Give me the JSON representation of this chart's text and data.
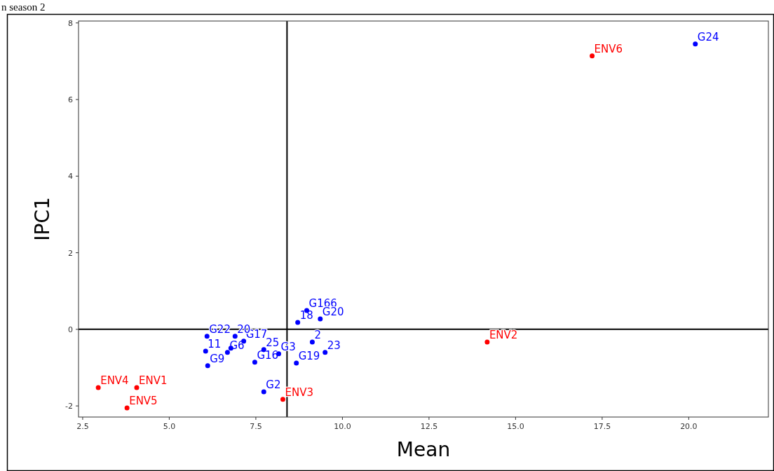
{
  "chart_data": {
    "type": "scatter",
    "xlabel": "Mean",
    "ylabel": "IPC1",
    "xlim": [
      2.38,
      22.3
    ],
    "ylim": [
      -2.29,
      8.05
    ],
    "xticks": [
      {
        "value": 2.5,
        "label": "2.5"
      },
      {
        "value": 5,
        "label": "5.0"
      },
      {
        "value": 7.5,
        "label": "7.5"
      },
      {
        "value": 10,
        "label": "10.0"
      },
      {
        "value": 12.5,
        "label": "12.5"
      },
      {
        "value": 15,
        "label": "15.0"
      },
      {
        "value": 17.5,
        "label": "17.5"
      },
      {
        "value": 20,
        "label": "20.0"
      }
    ],
    "yticks": [
      -2,
      0,
      2,
      4,
      6,
      8
    ],
    "grid": false,
    "marker": "circle",
    "series": [
      {
        "color": "#0000ff",
        "x": [
          20.19,
          8.97,
          8.71,
          9.36,
          9.13,
          9.5,
          8.67,
          8.16,
          7.73,
          7.47,
          7.15,
          6.68,
          6.78,
          6.9,
          6.09,
          6.05,
          6.11,
          7.73
        ],
        "values": [
          7.45,
          0.49,
          0.18,
          0.27,
          -0.33,
          -0.6,
          -0.88,
          -0.64,
          -0.53,
          -0.86,
          -0.31,
          -0.6,
          -0.49,
          -0.18,
          -0.18,
          -0.57,
          -0.95,
          -1.63
        ]
      },
      {
        "color": "#ff0000",
        "x": [
          17.21,
          14.18,
          8.28,
          2.95,
          4.06,
          3.78
        ],
        "values": [
          7.14,
          -0.33,
          -1.83,
          -1.52,
          -1.52,
          -2.05
        ]
      }
    ],
    "ref_lines": [
      {
        "axis": "x",
        "value": 8.4,
        "color": "#000000"
      },
      {
        "axis": "y",
        "value": 0,
        "color": "#000000"
      }
    ],
    "annotations": [
      "n season 2",
      {
        "text": "G24",
        "x": 20.19,
        "y": 7.45
      },
      {
        "text": "G166",
        "x": 8.97,
        "y": 0.49
      },
      {
        "text": "18",
        "x": 8.71,
        "y": 0.18
      },
      {
        "text": "G20",
        "x": 9.36,
        "y": 0.27
      },
      {
        "text": "2",
        "x": 9.13,
        "y": -0.33
      },
      {
        "text": "23",
        "x": 9.5,
        "y": -0.6
      },
      {
        "text": "G19",
        "x": 8.67,
        "y": -0.88
      },
      {
        "text": "G3",
        "x": 8.16,
        "y": -0.64
      },
      {
        "text": "25",
        "x": 7.73,
        "y": -0.53
      },
      {
        "text": "G16",
        "x": 7.47,
        "y": -0.86
      },
      {
        "text": "G17",
        "x": 7.15,
        "y": -0.31
      },
      {
        "text": "G6",
        "x": 6.68,
        "y": -0.6
      },
      {
        "text": "20",
        "x": 6.9,
        "y": -0.18
      },
      {
        "text": "G22",
        "x": 6.09,
        "y": -0.18
      },
      {
        "text": "11",
        "x": 6.05,
        "y": -0.57
      },
      {
        "text": "G9",
        "x": 6.11,
        "y": -0.95
      },
      {
        "text": "G2",
        "x": 7.73,
        "y": -1.63
      },
      {
        "text": "ENV6",
        "x": 17.21,
        "y": 7.14
      },
      {
        "text": "ENV2",
        "x": 14.18,
        "y": -0.33
      },
      {
        "text": "ENV3",
        "x": 8.28,
        "y": -1.83
      },
      {
        "text": "ENV4",
        "x": 2.95,
        "y": -1.52
      },
      {
        "text": "ENV1",
        "x": 4.06,
        "y": -1.52
      },
      {
        "text": "ENV5",
        "x": 3.78,
        "y": -2.05
      }
    ]
  }
}
